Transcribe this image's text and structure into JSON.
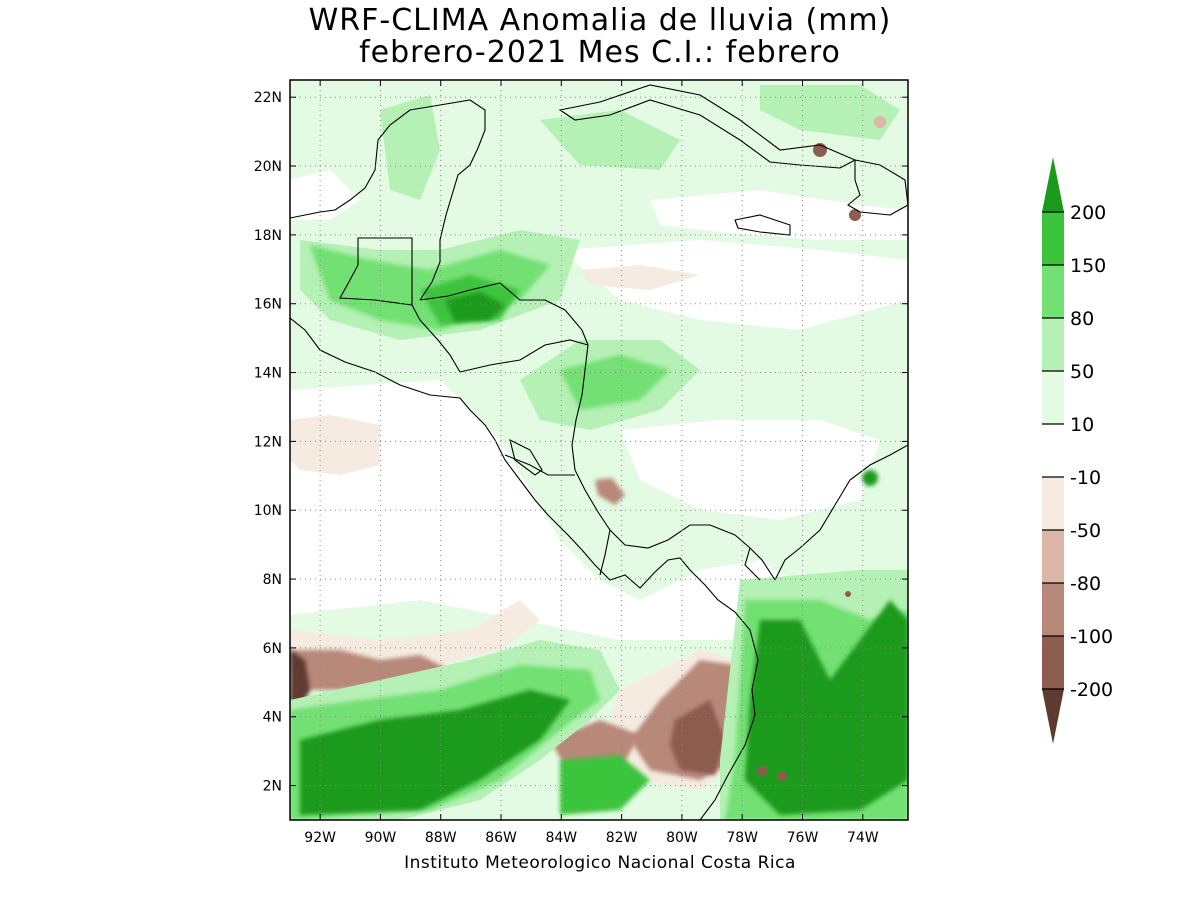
{
  "title": {
    "line1": "WRF-CLIMA Anomalia de lluvia (mm)",
    "line2": "febrero-2021 Mes C.I.: febrero"
  },
  "credit": "Instituto Meteorologico Nacional Costa Rica",
  "map": {
    "lon_range": [
      -93.0,
      -72.5
    ],
    "lat_range": [
      1.0,
      22.5
    ],
    "lon_ticks": [
      {
        "value": -92,
        "label": "92W"
      },
      {
        "value": -90,
        "label": "90W"
      },
      {
        "value": -88,
        "label": "88W"
      },
      {
        "value": -86,
        "label": "86W"
      },
      {
        "value": -84,
        "label": "84W"
      },
      {
        "value": -82,
        "label": "82W"
      },
      {
        "value": -80,
        "label": "80W"
      },
      {
        "value": -78,
        "label": "78W"
      },
      {
        "value": -76,
        "label": "76W"
      },
      {
        "value": -74,
        "label": "74W"
      }
    ],
    "lat_ticks": [
      {
        "value": 2,
        "label": "2N"
      },
      {
        "value": 4,
        "label": "4N"
      },
      {
        "value": 6,
        "label": "6N"
      },
      {
        "value": 8,
        "label": "8N"
      },
      {
        "value": 10,
        "label": "10N"
      },
      {
        "value": 12,
        "label": "12N"
      },
      {
        "value": 14,
        "label": "14N"
      },
      {
        "value": 16,
        "label": "16N"
      },
      {
        "value": 18,
        "label": "18N"
      },
      {
        "value": 20,
        "label": "20N"
      },
      {
        "value": 22,
        "label": "22N"
      }
    ],
    "gridlines": "dotted"
  },
  "colorbar": {
    "levels": [
      "200",
      "150",
      "80",
      "50",
      "10",
      "-10",
      "-50",
      "-80",
      "-100",
      "-200"
    ],
    "colors_top_to_bottom": [
      "#1a9a1a",
      "#3cc43c",
      "#72e072",
      "#b5f0b5",
      "#e2fbe2",
      "#ffffff",
      "#f5ebe1",
      "#dcb7a7",
      "#b88878",
      "#8c5c4f",
      "#5e3a31"
    ]
  },
  "colors": {
    "green_dark": "#1a9a1a",
    "green_mid": "#3cc43c",
    "green_light": "#72e072",
    "green_pale": "#b5f0b5",
    "green_faint": "#e2fbe2",
    "neutral": "#ffffff",
    "brown_faint": "#f5ebe1",
    "brown_light": "#dcb7a7",
    "brown_mid": "#b88878",
    "brown_dark": "#8c5c4f",
    "brown_darkest": "#5e3a31"
  }
}
